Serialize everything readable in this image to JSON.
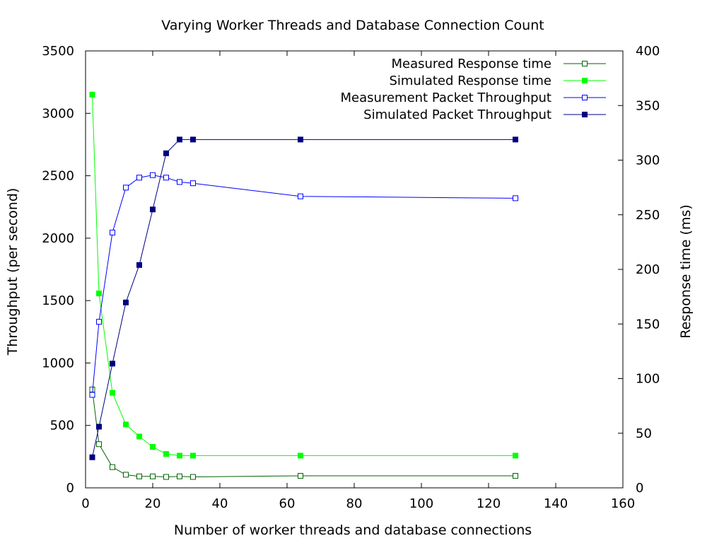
{
  "chart_data": {
    "type": "line",
    "title": "Varying Worker Threads and Database Connection Count",
    "xlabel": "Number of worker threads and database connections",
    "ylabel_left": "Throughput (per second)",
    "ylabel_right": "Response time (ms)",
    "xlim": [
      0,
      160
    ],
    "ylim_left": [
      0,
      3500
    ],
    "ylim_right": [
      0,
      400
    ],
    "xticks": [
      0,
      20,
      40,
      60,
      80,
      100,
      120,
      140,
      160
    ],
    "yticks_left": [
      0,
      500,
      1000,
      1500,
      2000,
      2500,
      3000,
      3500
    ],
    "yticks_right": [
      0,
      50,
      100,
      150,
      200,
      250,
      300,
      350,
      400
    ],
    "grid": false,
    "legend_position": "top-right",
    "series": [
      {
        "name": "Measured Response time",
        "axis": "right",
        "color": "#006400",
        "marker": "open-square",
        "x": [
          2,
          4,
          8,
          12,
          16,
          20,
          24,
          28,
          32,
          64,
          128
        ],
        "y": [
          90,
          40,
          19,
          12,
          10.5,
          10.5,
          10,
          10.5,
          10,
          11,
          11
        ]
      },
      {
        "name": "Simulated Response time",
        "axis": "right",
        "color": "#00ff00",
        "marker": "filled-square",
        "x": [
          2,
          4,
          8,
          12,
          16,
          20,
          24,
          28,
          32,
          64,
          128
        ],
        "y": [
          360,
          178,
          87,
          58,
          47,
          37.5,
          31,
          29.5,
          29.5,
          29.5,
          29.5
        ]
      },
      {
        "name": "Measurement Packet Throughput",
        "axis": "left",
        "color": "#0000ff",
        "marker": "open-square",
        "x": [
          2,
          4,
          8,
          12,
          16,
          20,
          24,
          28,
          32,
          64,
          128
        ],
        "y": [
          745,
          1330,
          2045,
          2405,
          2485,
          2505,
          2485,
          2450,
          2440,
          2335,
          2320
        ]
      },
      {
        "name": "Simulated Packet Throughput",
        "axis": "left",
        "color": "#000080",
        "marker": "filled-square",
        "x": [
          2,
          4,
          8,
          12,
          16,
          20,
          24,
          28,
          32,
          64,
          128
        ],
        "y": [
          245,
          490,
          995,
          1485,
          1785,
          2230,
          2680,
          2790,
          2790,
          2790,
          2790
        ]
      }
    ]
  }
}
